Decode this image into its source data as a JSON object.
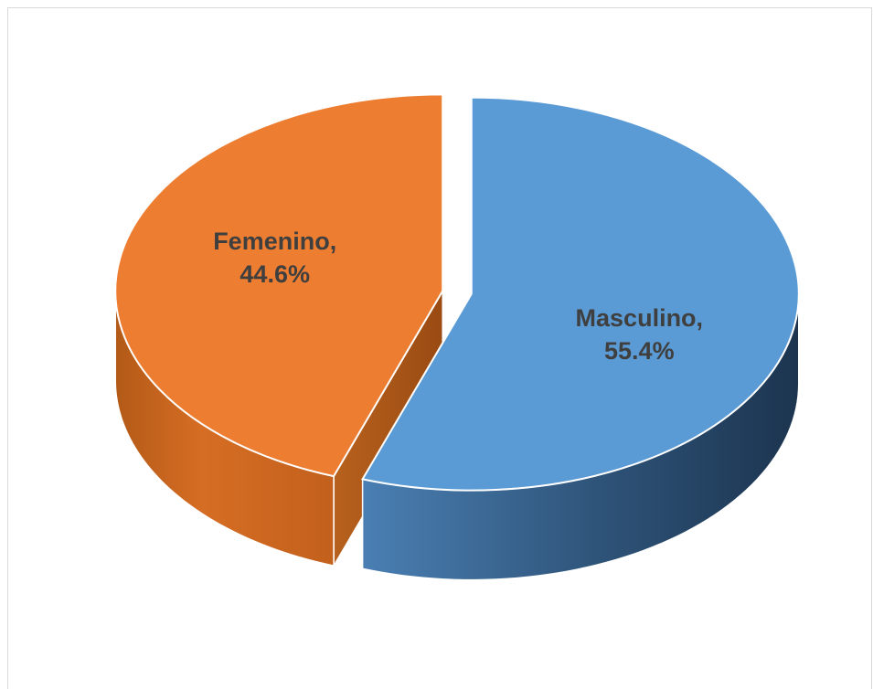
{
  "chart_data": {
    "type": "pie",
    "style": "3d-exploded",
    "title": "",
    "slices": [
      {
        "label": "Masculino",
        "value": 55.4,
        "display": "55.4%",
        "color": "#5b9bd5",
        "side_color_light": "#4a7fb3",
        "side_color_dark": "#1f3a56"
      },
      {
        "label": "Femenino",
        "value": 44.6,
        "display": "44.6%",
        "color": "#ed7d31",
        "side_color_light": "#cf6a22",
        "side_color_dark": "#a54e12"
      }
    ],
    "legend": "none",
    "label_separator": ","
  }
}
